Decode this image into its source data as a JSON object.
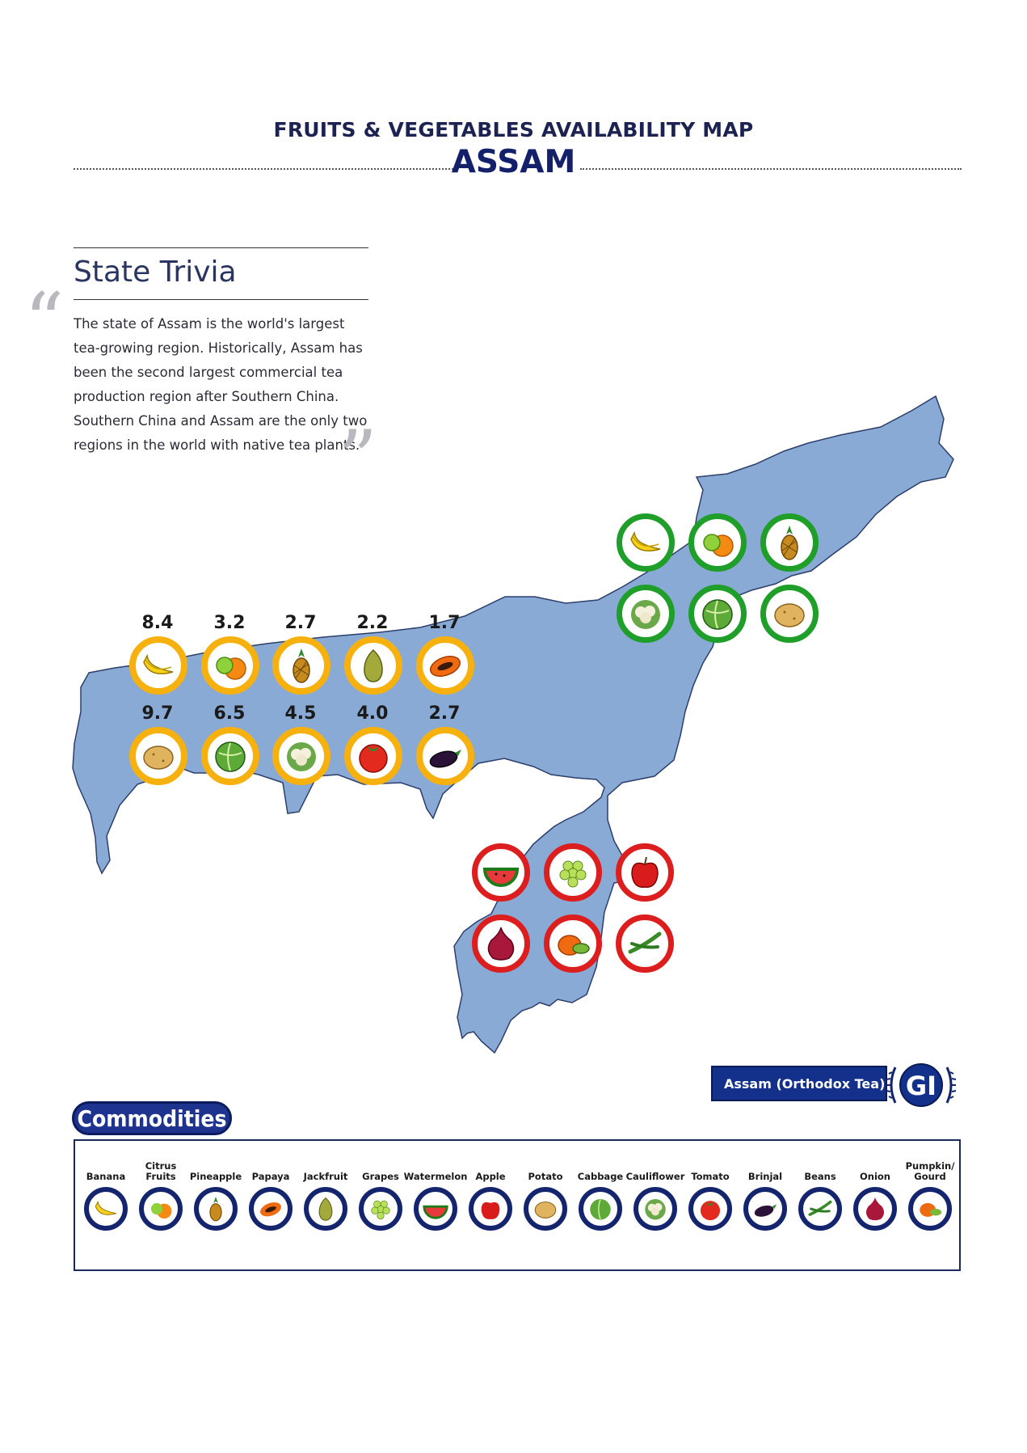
{
  "header": {
    "title": "FRUITS & VEGETABLES AVAILABILITY MAP",
    "state": "ASSAM"
  },
  "trivia": {
    "heading": "State Trivia",
    "open_quote": "“",
    "close_quote": "”",
    "lines": [
      "The state of Assam is the world's largest",
      "tea-growing region. Historically, Assam has",
      "been the second largest commercial tea",
      "production region after Southern China.",
      "Southern China and Assam are the only two",
      "regions in the world with native tea plants."
    ]
  },
  "colors": {
    "map_fill": "#8aaad6",
    "green_ring": "#1f9e2a",
    "yellow_ring": "#f6b10f",
    "red_ring": "#dc1e1e",
    "legend_ring": "#14256e",
    "brand": "#13318a"
  },
  "map_markers": {
    "yellow_values": [
      {
        "item": "banana-icon",
        "value": "8.4"
      },
      {
        "item": "citrus-icon",
        "value": "3.2"
      },
      {
        "item": "pineapple-icon",
        "value": "2.7"
      },
      {
        "item": "jackfruit-icon",
        "value": "2.2"
      },
      {
        "item": "papaya-icon",
        "value": "1.7"
      },
      {
        "item": "potato-icon",
        "value": "9.7"
      },
      {
        "item": "cabbage-icon",
        "value": "6.5"
      },
      {
        "item": "cauliflower-icon",
        "value": "4.5"
      },
      {
        "item": "tomato-icon",
        "value": "4.0"
      },
      {
        "item": "brinjal-icon",
        "value": "2.7"
      }
    ],
    "green": [
      "banana-icon",
      "citrus-icon",
      "pineapple-icon",
      "cauliflower-icon",
      "cabbage-icon",
      "potato-icon"
    ],
    "red": [
      "watermelon-icon",
      "grapes-icon",
      "apple-icon",
      "onion-icon",
      "pumpkin-icon",
      "beans-icon"
    ]
  },
  "gi": {
    "label": "Assam (Orthodox Tea)",
    "emblem": "GI"
  },
  "commodities": {
    "title": "Commodities",
    "items": [
      {
        "label": "Banana",
        "icon": "banana-icon"
      },
      {
        "label": "Citrus Fruits",
        "icon": "citrus-icon"
      },
      {
        "label": "Pineapple",
        "icon": "pineapple-icon"
      },
      {
        "label": "Papaya",
        "icon": "papaya-icon"
      },
      {
        "label": "Jackfruit",
        "icon": "jackfruit-icon"
      },
      {
        "label": "Grapes",
        "icon": "grapes-icon"
      },
      {
        "label": "Watermelon",
        "icon": "watermelon-icon"
      },
      {
        "label": "Apple",
        "icon": "apple-icon"
      },
      {
        "label": "Potato",
        "icon": "potato-icon"
      },
      {
        "label": "Cabbage",
        "icon": "cabbage-icon"
      },
      {
        "label": "Cauliflower",
        "icon": "cauliflower-icon"
      },
      {
        "label": "Tomato",
        "icon": "tomato-icon"
      },
      {
        "label": "Brinjal",
        "icon": "brinjal-icon"
      },
      {
        "label": "Beans",
        "icon": "beans-icon"
      },
      {
        "label": "Onion",
        "icon": "onion-icon"
      },
      {
        "label": "Pumpkin/\nGourd",
        "icon": "pumpkin-icon"
      }
    ]
  }
}
